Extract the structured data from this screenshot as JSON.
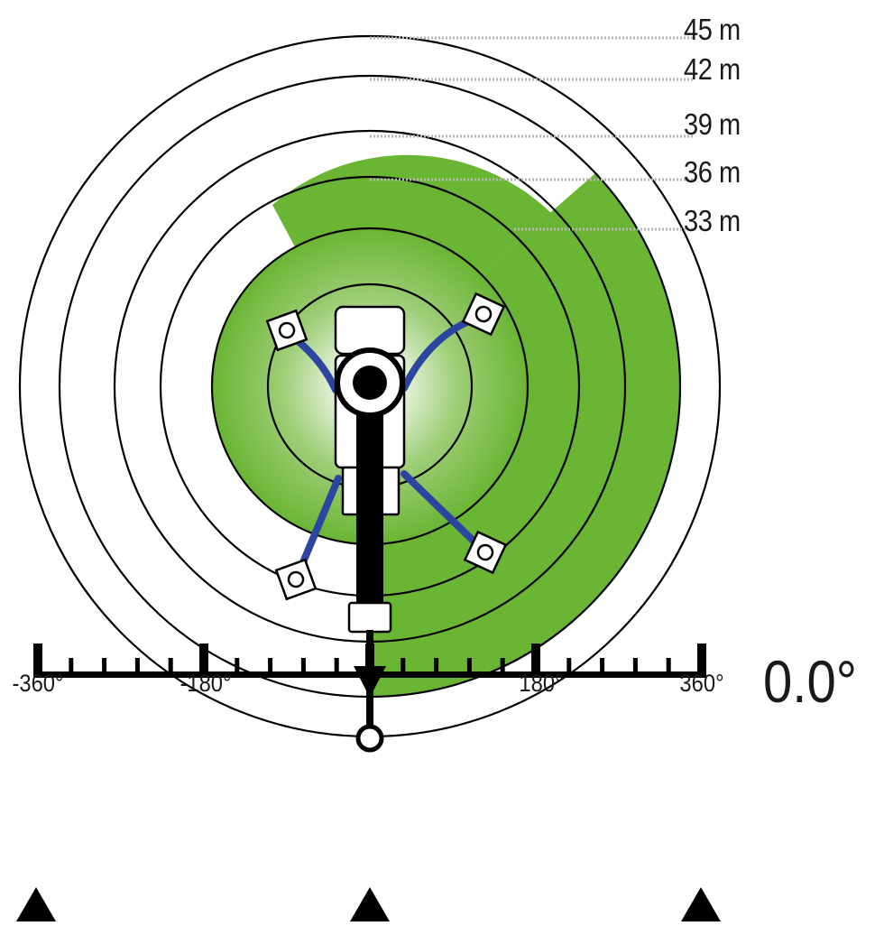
{
  "range_diagram": {
    "rings_m": [
      "45 m",
      "42 m",
      "39 m",
      "36 m",
      "33 m"
    ],
    "colors": {
      "coverage_green": "#6ab534",
      "inner_glow": "#ffffff",
      "outrigger_blue": "#2b45a0",
      "outline": "#000000",
      "leader_gray": "#b5b5b5"
    },
    "icons": [
      "crane-body",
      "slewing-ring-icon",
      "boom-arm",
      "hook-icon",
      "outrigger-pad-icon"
    ]
  },
  "slew_scale": {
    "tick_labels": [
      "-360°",
      "-180°",
      "180°",
      "360°"
    ],
    "current_angle": "0.0°",
    "pointer_icon": "triangle-down-icon",
    "marker_icon": "triangle-up-icon"
  }
}
